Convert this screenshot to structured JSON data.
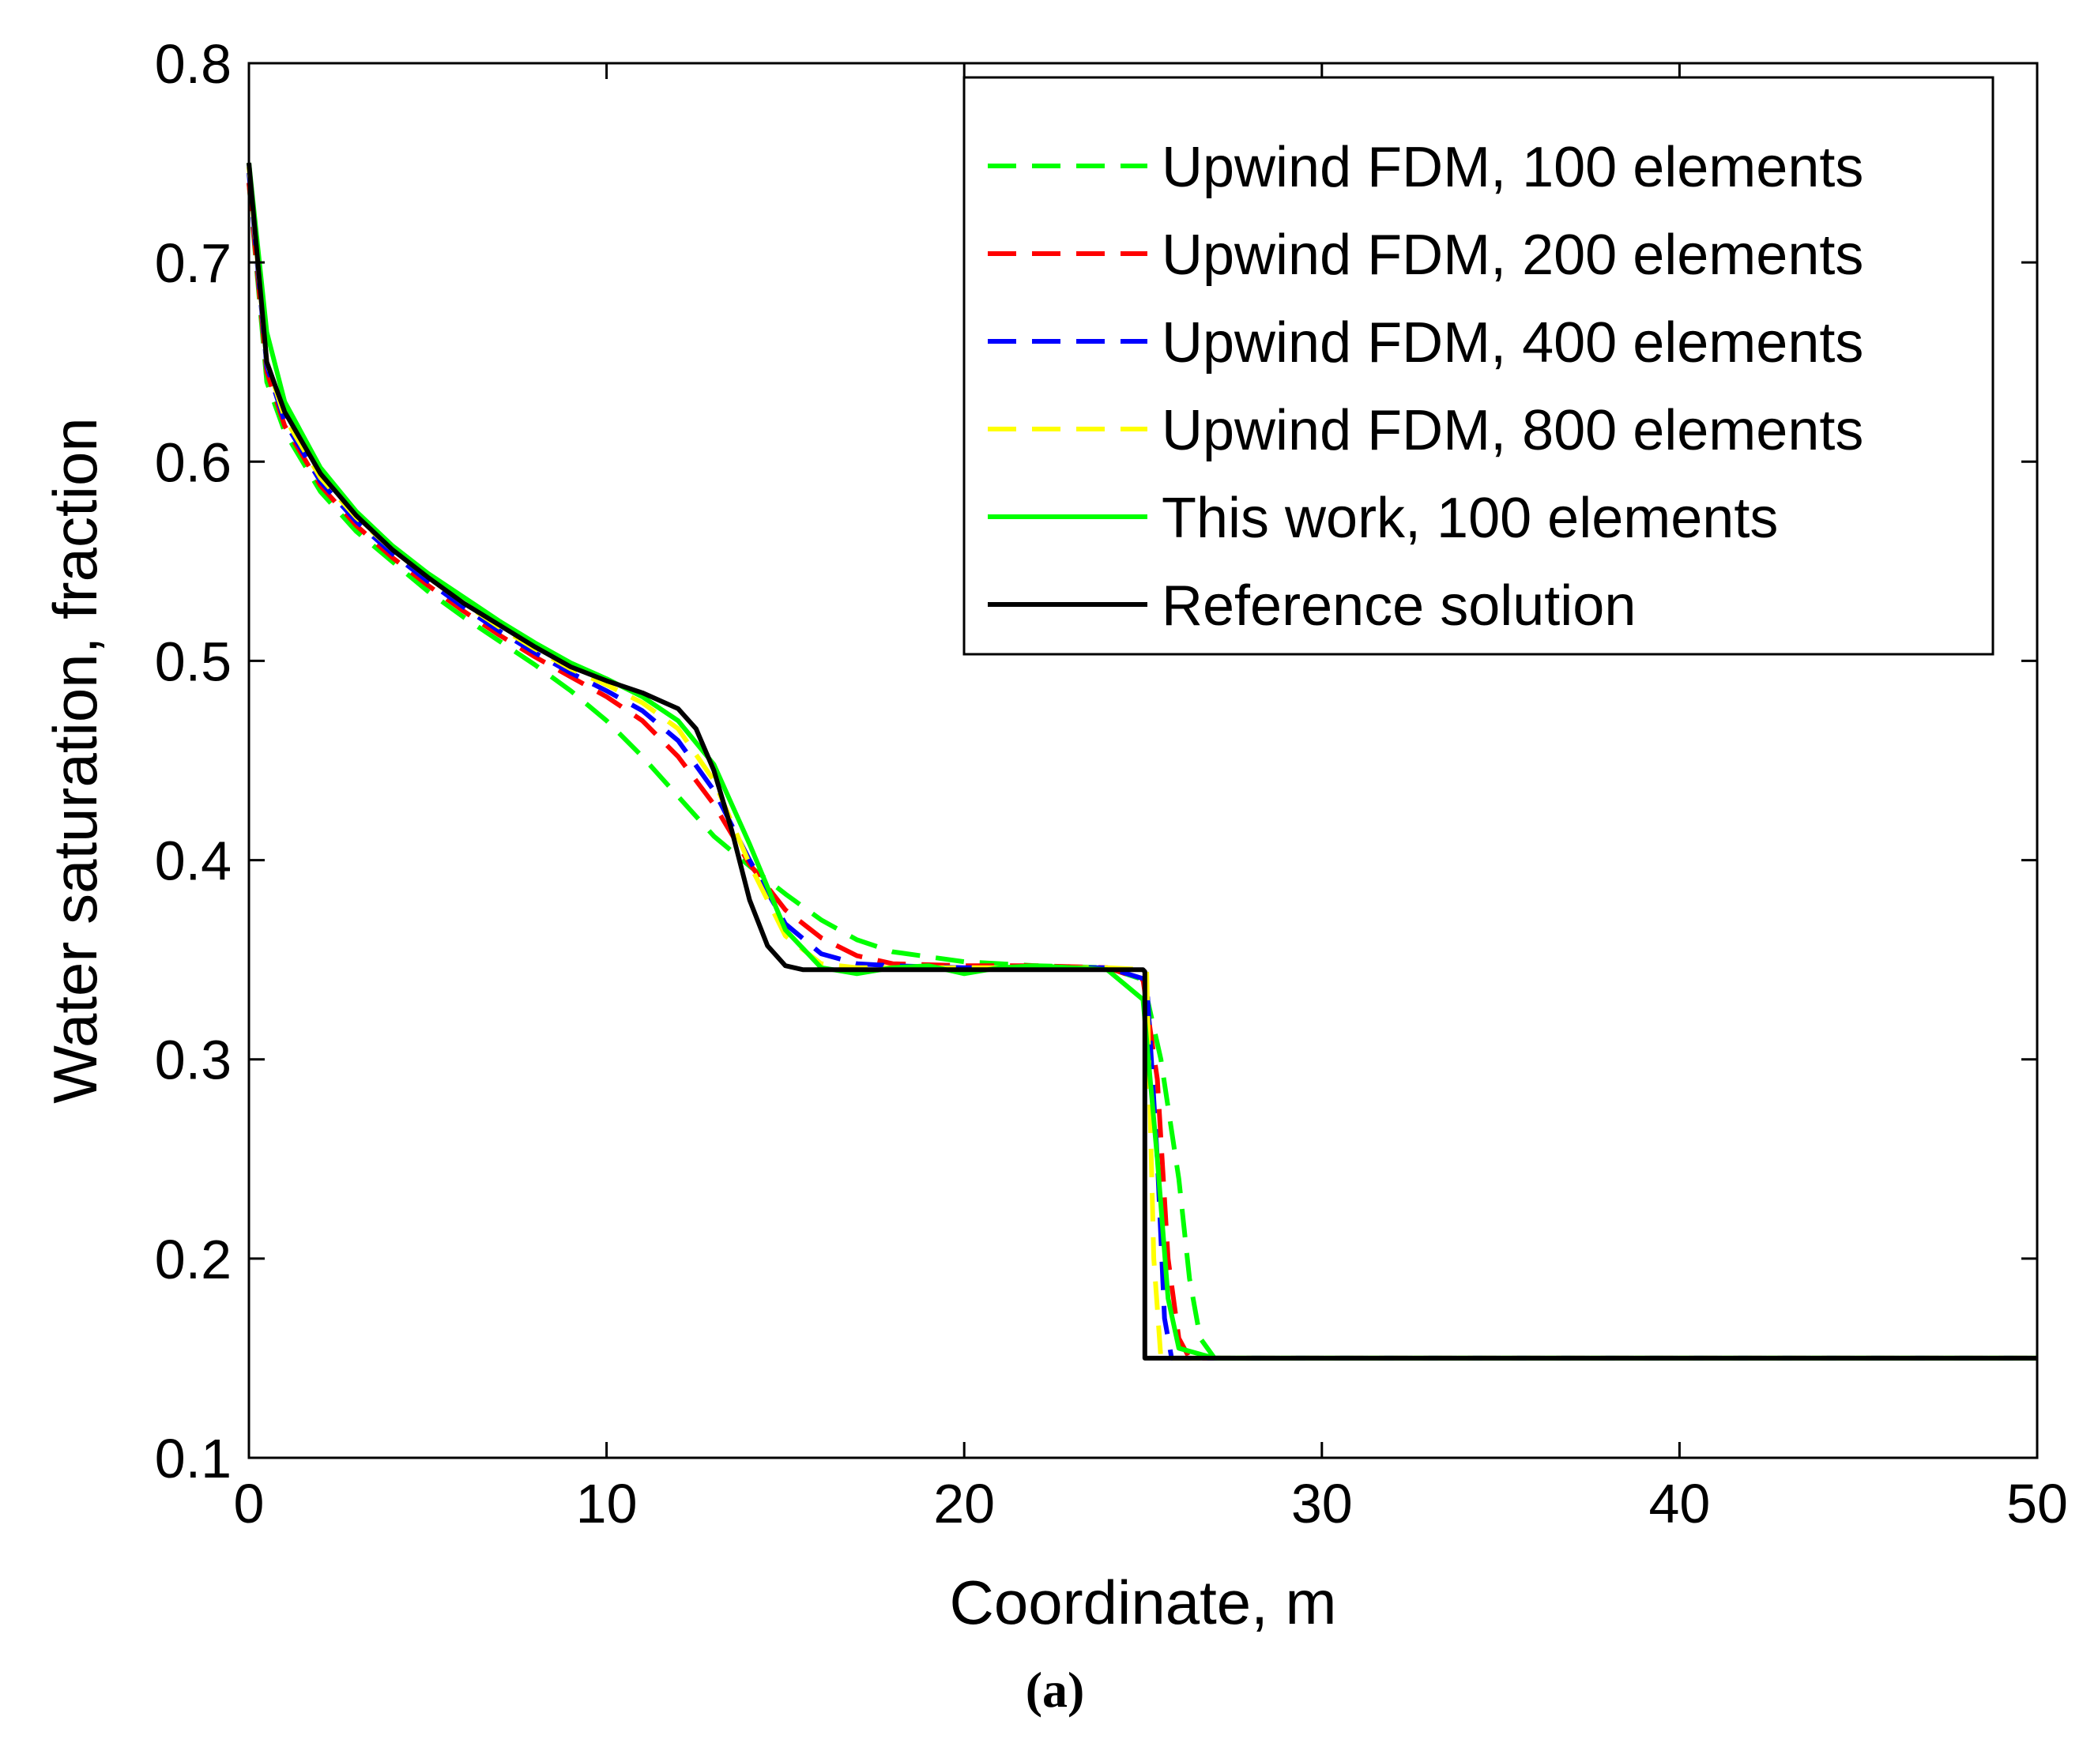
{
  "chart_data": {
    "type": "line",
    "title": "",
    "xlabel": "Coordinate, m",
    "ylabel": "Water saturation, fraction",
    "panel_label": "(a)",
    "xlim": [
      0,
      50
    ],
    "ylim": [
      0.1,
      0.8
    ],
    "xticks": [
      "0",
      "10",
      "20",
      "30",
      "40",
      "50"
    ],
    "yticks": [
      "0.1",
      "0.2",
      "0.3",
      "0.4",
      "0.5",
      "0.6",
      "0.7",
      "0.8"
    ],
    "grid": false,
    "legend_position": "top-right",
    "series": [
      {
        "name": "Upwind FDM, 100 elements",
        "color": "#00ff00",
        "style": "dashed",
        "x": [
          0,
          0.5,
          1,
          2,
          3,
          4,
          5,
          6,
          7,
          8,
          9,
          10,
          11,
          12,
          13,
          14,
          15,
          16,
          17,
          18,
          20,
          22,
          24,
          25,
          25.5,
          26,
          26.3,
          26.6,
          27,
          30,
          40,
          50
        ],
        "y": [
          0.74,
          0.64,
          0.615,
          0.585,
          0.565,
          0.55,
          0.535,
          0.522,
          0.51,
          0.498,
          0.485,
          0.47,
          0.452,
          0.432,
          0.412,
          0.397,
          0.383,
          0.37,
          0.36,
          0.354,
          0.349,
          0.347,
          0.346,
          0.34,
          0.3,
          0.24,
          0.19,
          0.16,
          0.15,
          0.15,
          0.15,
          0.15
        ]
      },
      {
        "name": "Upwind FDM, 200 elements",
        "color": "#ff0000",
        "style": "dashed",
        "x": [
          0,
          0.5,
          1,
          2,
          3,
          4,
          5,
          6,
          7,
          8,
          9,
          10,
          11,
          12,
          13,
          14,
          15,
          16,
          17,
          18,
          20,
          22,
          24,
          25,
          25.4,
          25.7,
          26,
          26.3,
          30,
          40,
          50
        ],
        "y": [
          0.74,
          0.645,
          0.618,
          0.588,
          0.568,
          0.552,
          0.538,
          0.525,
          0.513,
          0.502,
          0.492,
          0.482,
          0.47,
          0.452,
          0.428,
          0.398,
          0.375,
          0.361,
          0.352,
          0.348,
          0.347,
          0.347,
          0.346,
          0.34,
          0.29,
          0.2,
          0.16,
          0.15,
          0.15,
          0.15,
          0.15
        ]
      },
      {
        "name": "Upwind FDM, 400 elements",
        "color": "#0000ff",
        "style": "dashed",
        "x": [
          0,
          0.5,
          1,
          2,
          3,
          4,
          5,
          6,
          7,
          8,
          9,
          10,
          11,
          12,
          13,
          14,
          15,
          16,
          17,
          18,
          20,
          22,
          24,
          25.1,
          25.4,
          25.6,
          25.8,
          30,
          40,
          50
        ],
        "y": [
          0.745,
          0.648,
          0.62,
          0.59,
          0.57,
          0.554,
          0.54,
          0.527,
          0.515,
          0.504,
          0.494,
          0.485,
          0.475,
          0.46,
          0.435,
          0.4,
          0.368,
          0.353,
          0.348,
          0.347,
          0.346,
          0.346,
          0.346,
          0.34,
          0.25,
          0.17,
          0.15,
          0.15,
          0.15,
          0.15
        ]
      },
      {
        "name": "Upwind FDM, 800 elements",
        "color": "#ffff00",
        "style": "dashed",
        "x": [
          0,
          0.5,
          1,
          2,
          3,
          4,
          5,
          6,
          7,
          8,
          9,
          10,
          11,
          12,
          13,
          14,
          15,
          16,
          17,
          18,
          20,
          22,
          24,
          25.1,
          25.3,
          25.5,
          30,
          40,
          50
        ],
        "y": [
          0.748,
          0.65,
          0.622,
          0.592,
          0.572,
          0.556,
          0.542,
          0.529,
          0.517,
          0.506,
          0.496,
          0.488,
          0.479,
          0.466,
          0.44,
          0.398,
          0.362,
          0.348,
          0.346,
          0.346,
          0.346,
          0.346,
          0.346,
          0.345,
          0.2,
          0.15,
          0.15,
          0.15,
          0.15
        ]
      },
      {
        "name": "This work, 100 elements",
        "color": "#00ff00",
        "style": "solid",
        "x": [
          0,
          0.5,
          1,
          2,
          3,
          4,
          5,
          6,
          7,
          8,
          9,
          10,
          11,
          12,
          13,
          14,
          15,
          16,
          17,
          18,
          19,
          20,
          21,
          22,
          23,
          24,
          25,
          25.4,
          25.7,
          26,
          27,
          30,
          40,
          50
        ],
        "y": [
          0.75,
          0.665,
          0.63,
          0.597,
          0.575,
          0.558,
          0.544,
          0.532,
          0.52,
          0.509,
          0.499,
          0.491,
          0.482,
          0.47,
          0.448,
          0.408,
          0.365,
          0.346,
          0.343,
          0.346,
          0.347,
          0.343,
          0.346,
          0.347,
          0.346,
          0.345,
          0.33,
          0.25,
          0.18,
          0.155,
          0.15,
          0.15,
          0.15,
          0.15
        ]
      },
      {
        "name": "Reference solution",
        "color": "#000000",
        "style": "solid",
        "x": [
          0,
          0.5,
          1,
          2,
          3,
          4,
          5,
          6,
          7,
          8,
          9,
          10,
          11,
          12,
          12.5,
          13,
          13.5,
          14,
          14.5,
          15,
          15.5,
          16,
          18,
          20,
          22,
          24,
          25,
          25.05,
          25.05,
          30,
          40,
          50
        ],
        "y": [
          0.75,
          0.65,
          0.625,
          0.594,
          0.573,
          0.556,
          0.542,
          0.529,
          0.518,
          0.507,
          0.497,
          0.49,
          0.484,
          0.476,
          0.466,
          0.445,
          0.415,
          0.38,
          0.357,
          0.347,
          0.345,
          0.345,
          0.345,
          0.345,
          0.345,
          0.345,
          0.345,
          0.344,
          0.15,
          0.15,
          0.15,
          0.15
        ]
      }
    ]
  }
}
